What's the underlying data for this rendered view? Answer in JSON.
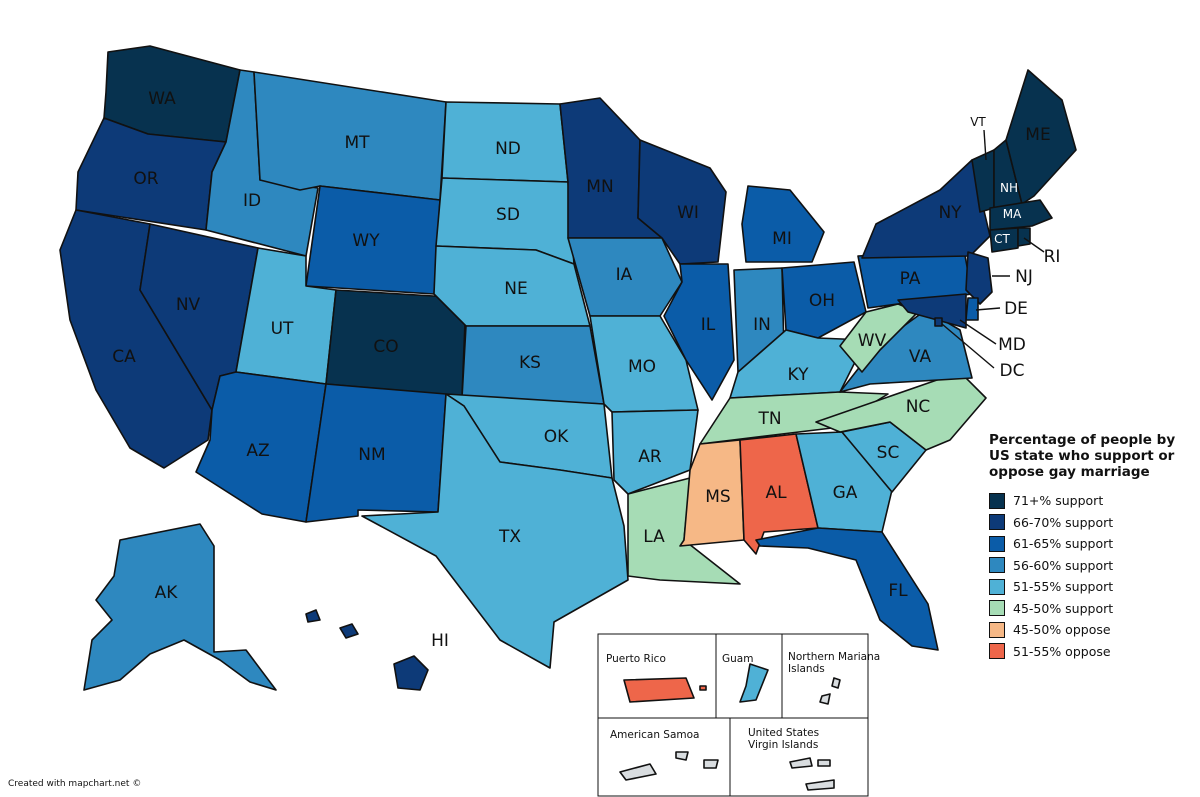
{
  "legend": {
    "title": "Percentage of people by US state who support or oppose gay marriage",
    "items": [
      {
        "key": "s71",
        "label": "71+% support",
        "color": "#07324f"
      },
      {
        "key": "s66",
        "label": "66-70% support",
        "color": "#0d3a78"
      },
      {
        "key": "s61",
        "label": "61-65% support",
        "color": "#0b5ca8"
      },
      {
        "key": "s56",
        "label": "56-60% support",
        "color": "#2e88bf"
      },
      {
        "key": "s51",
        "label": "51-55% support",
        "color": "#4fb1d6"
      },
      {
        "key": "s45",
        "label": "45-50% support",
        "color": "#a6dcb5"
      },
      {
        "key": "o45",
        "label": "45-50% oppose",
        "color": "#f6b886"
      },
      {
        "key": "o51",
        "label": "51-55% oppose",
        "color": "#ee664a"
      }
    ]
  },
  "states": {
    "WA": {
      "label": "WA",
      "category": "s71"
    },
    "OR": {
      "label": "OR",
      "category": "s66"
    },
    "CA": {
      "label": "CA",
      "category": "s66"
    },
    "NV": {
      "label": "NV",
      "category": "s66"
    },
    "ID": {
      "label": "ID",
      "category": "s56"
    },
    "MT": {
      "label": "MT",
      "category": "s56"
    },
    "WY": {
      "label": "WY",
      "category": "s61"
    },
    "UT": {
      "label": "UT",
      "category": "s51"
    },
    "CO": {
      "label": "CO",
      "category": "s71"
    },
    "AZ": {
      "label": "AZ",
      "category": "s61"
    },
    "NM": {
      "label": "NM",
      "category": "s61"
    },
    "ND": {
      "label": "ND",
      "category": "s51"
    },
    "SD": {
      "label": "SD",
      "category": "s51"
    },
    "NE": {
      "label": "NE",
      "category": "s51"
    },
    "KS": {
      "label": "KS",
      "category": "s56"
    },
    "OK": {
      "label": "OK",
      "category": "s51"
    },
    "TX": {
      "label": "TX",
      "category": "s51"
    },
    "MN": {
      "label": "MN",
      "category": "s66"
    },
    "IA": {
      "label": "IA",
      "category": "s56"
    },
    "MO": {
      "label": "MO",
      "category": "s51"
    },
    "AR": {
      "label": "AR",
      "category": "s51"
    },
    "LA": {
      "label": "LA",
      "category": "s45"
    },
    "WI": {
      "label": "WI",
      "category": "s66"
    },
    "IL": {
      "label": "IL",
      "category": "s61"
    },
    "MI": {
      "label": "MI",
      "category": "s61"
    },
    "IN": {
      "label": "IN",
      "category": "s56"
    },
    "OH": {
      "label": "OH",
      "category": "s61"
    },
    "KY": {
      "label": "KY",
      "category": "s51"
    },
    "TN": {
      "label": "TN",
      "category": "s45"
    },
    "MS": {
      "label": "MS",
      "category": "o45"
    },
    "AL": {
      "label": "AL",
      "category": "o51"
    },
    "GA": {
      "label": "GA",
      "category": "s51"
    },
    "FL": {
      "label": "FL",
      "category": "s61"
    },
    "SC": {
      "label": "SC",
      "category": "s51"
    },
    "NC": {
      "label": "NC",
      "category": "s45"
    },
    "VA": {
      "label": "VA",
      "category": "s56"
    },
    "WV": {
      "label": "WV",
      "category": "s45"
    },
    "PA": {
      "label": "PA",
      "category": "s61"
    },
    "NY": {
      "label": "NY",
      "category": "s66"
    },
    "NJ": {
      "label": "NJ",
      "category": "s66"
    },
    "DE": {
      "label": "DE",
      "category": "s61"
    },
    "MD": {
      "label": "MD",
      "category": "s66"
    },
    "DC": {
      "label": "DC",
      "category": "s66"
    },
    "VT": {
      "label": "VT",
      "category": "s71"
    },
    "NH": {
      "label": "NH",
      "category": "s71"
    },
    "ME": {
      "label": "ME",
      "category": "s71"
    },
    "MA": {
      "label": "MA",
      "category": "s71"
    },
    "CT": {
      "label": "CT",
      "category": "s71"
    },
    "RI": {
      "label": "RI",
      "category": "s71"
    },
    "AK": {
      "label": "AK",
      "category": "s56"
    },
    "HI": {
      "label": "HI",
      "category": "s66"
    }
  },
  "territories": {
    "puerto_rico": {
      "label": "Puerto Rico",
      "category": "o51"
    },
    "guam": {
      "label": "Guam",
      "category": "s51"
    },
    "northern_mariana": {
      "label": "Northern Mariana Islands",
      "line1": "Northern Mariana",
      "line2": "Islands",
      "color": "#d9dde0"
    },
    "american_samoa": {
      "label": "American Samoa",
      "color": "#d9dde0"
    },
    "usvi": {
      "label": "United States Virgin Islands",
      "line1": "United States",
      "line2": "Virgin Islands",
      "color": "#d9dde0"
    }
  },
  "footer": "Created with mapchart.net ©"
}
